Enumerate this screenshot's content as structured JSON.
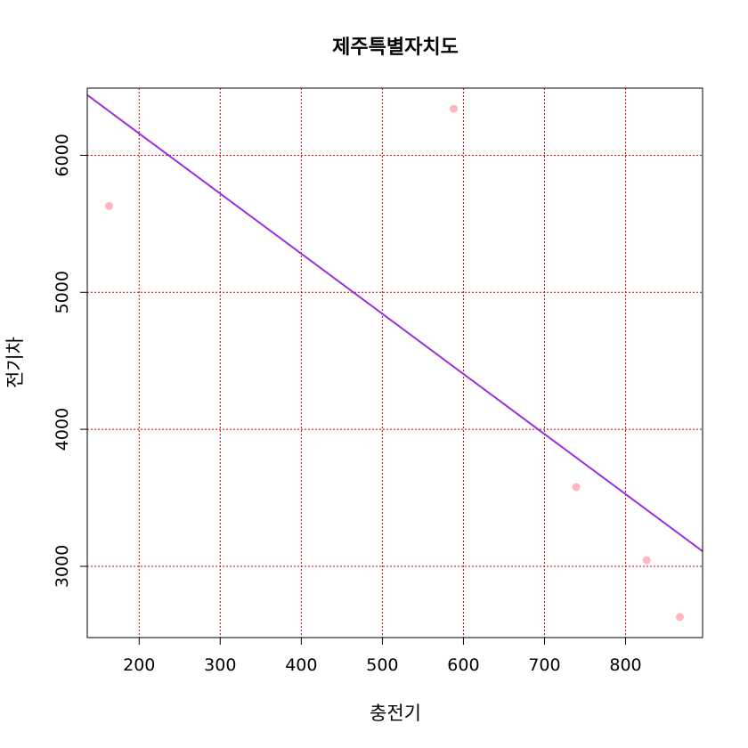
{
  "chart_data": {
    "type": "scatter",
    "title": "제주특별자치도",
    "xlabel": "충전기",
    "ylabel": "전기차",
    "xlim": [
      136,
      895
    ],
    "ylim": [
      2480,
      6490
    ],
    "x_ticks": [
      200,
      300,
      400,
      500,
      600,
      700,
      800
    ],
    "y_ticks": [
      3000,
      4000,
      5000,
      6000
    ],
    "grid": true,
    "points": [
      {
        "x": 163,
        "y": 5630
      },
      {
        "x": 588,
        "y": 6340
      },
      {
        "x": 739,
        "y": 3578
      },
      {
        "x": 826,
        "y": 3045
      },
      {
        "x": 867,
        "y": 2630
      }
    ],
    "regression_line": {
      "x": [
        136,
        895
      ],
      "y": [
        6440,
        3110
      ]
    },
    "colors": {
      "points": "#ffb6c1",
      "line": "#9b30e0",
      "grid": "#cc0000",
      "frame": "#000000"
    }
  }
}
